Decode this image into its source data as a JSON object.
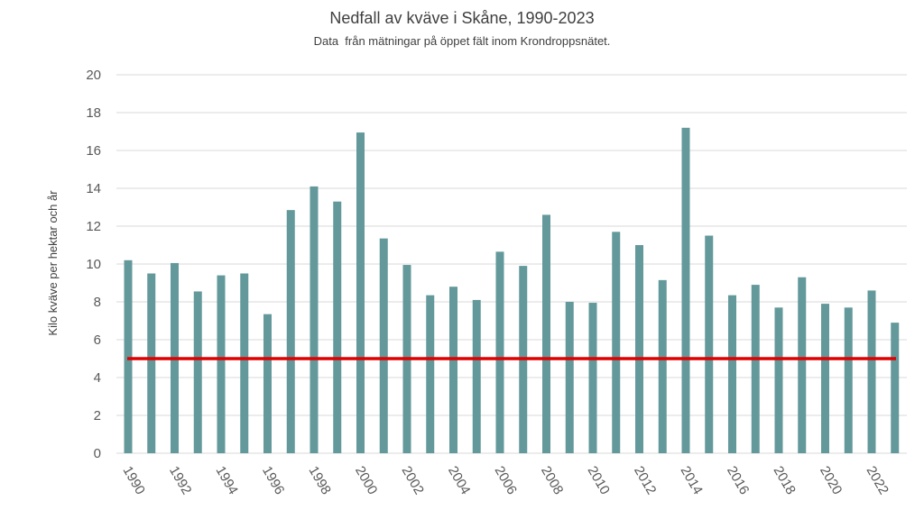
{
  "colors": {
    "bar": "#63999b",
    "reference_line": "#e00000",
    "grid": "#d9d9d9"
  },
  "chart_data": {
    "type": "bar",
    "title": "Nedfall av kväve i Skåne, 1990-2023",
    "subtitle": "Data  från mätningar på öppet fält inom Krondroppsnätet.",
    "ylabel": "Kilo kväve per hektar och år",
    "xlabel": "",
    "ylim": [
      0,
      20
    ],
    "yticks": [
      "0",
      "2",
      "4",
      "6",
      "8",
      "10",
      "12",
      "14",
      "16",
      "18",
      "20"
    ],
    "grid": true,
    "categories": [
      "1990",
      "1991",
      "1992",
      "1993",
      "1994",
      "1995",
      "1996",
      "1997",
      "1998",
      "1999",
      "2000",
      "2001",
      "2002",
      "2003",
      "2004",
      "2005",
      "2006",
      "2007",
      "2008",
      "2009",
      "2010",
      "2011",
      "2012",
      "2013",
      "2014",
      "2015",
      "2016",
      "2017",
      "2018",
      "2019",
      "2020",
      "2021",
      "2022",
      "2023"
    ],
    "xtick_labels": [
      "1990",
      "",
      "1992",
      "",
      "1994",
      "",
      "1996",
      "",
      "1998",
      "",
      "2000",
      "",
      "2002",
      "",
      "2004",
      "",
      "2006",
      "",
      "2008",
      "",
      "2010",
      "",
      "2012",
      "",
      "2014",
      "",
      "2016",
      "",
      "2018",
      "",
      "2020",
      "",
      "2022",
      ""
    ],
    "values": [
      10.2,
      9.5,
      10.05,
      8.55,
      9.4,
      9.5,
      7.35,
      12.85,
      14.1,
      13.3,
      16.95,
      11.35,
      9.95,
      8.35,
      8.8,
      8.1,
      10.65,
      9.9,
      12.6,
      8.0,
      7.95,
      11.7,
      11.0,
      9.15,
      17.2,
      11.5,
      8.35,
      8.9,
      7.7,
      9.3,
      7.9,
      7.7,
      8.6,
      6.9
    ],
    "reference_line": {
      "value": 5
    }
  }
}
